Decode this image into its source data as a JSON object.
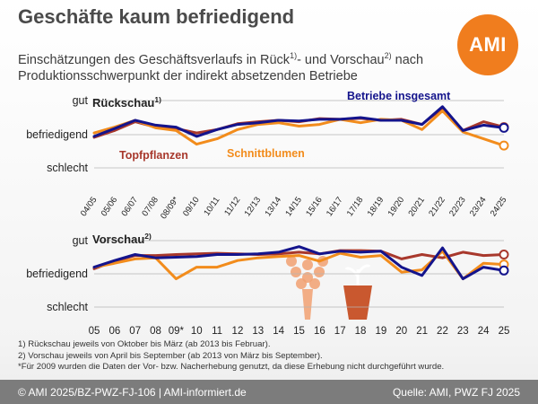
{
  "header": {
    "title": "Geschäfte kaum befriedigend",
    "subtitle_part1": "Einschätzungen des Geschäftsverlaufs in Rück",
    "subtitle_sup1": "1)",
    "subtitle_part2": "- und Vorschau",
    "subtitle_sup2": "2)",
    "subtitle_part3": " nach Produktionsschwerpunkt der indirekt absetzenden Betriebe",
    "logo_text": "AMI"
  },
  "colors": {
    "topfpflanzen": "#a8382c",
    "schnittblumen": "#f28c1c",
    "insgesamt": "#14148c",
    "grid": "#b4b4b4",
    "icons": "#f1a071"
  },
  "icons": [
    "bouquet-icon",
    "potted-plant-icon"
  ],
  "chart_data": [
    {
      "type": "line",
      "panel_title": "Rückschau",
      "panel_title_sup": "1)",
      "y_levels": [
        "gut",
        "befriedigend",
        "schlecht"
      ],
      "categories": [
        "04/05",
        "05/06",
        "06/07",
        "07/08",
        "08/09*",
        "09/10",
        "10/11",
        "11/12",
        "12/13",
        "13/14",
        "14/15",
        "15/16",
        "16/17",
        "17/18",
        "18/19",
        "19/20",
        "20/21",
        "21/22",
        "22/23",
        "23/24",
        "24/25"
      ],
      "ylim": [
        -1,
        1
      ],
      "series": [
        {
          "name": "Topfpflanzen",
          "key": "topfpflanzen",
          "values": [
            -0.08,
            0.12,
            0.38,
            0.22,
            0.18,
            0.05,
            0.15,
            0.32,
            0.38,
            0.42,
            0.38,
            0.47,
            0.45,
            0.48,
            0.42,
            0.45,
            0.3,
            0.78,
            0.12,
            0.38,
            0.22
          ]
        },
        {
          "name": "Schnittblumen",
          "key": "schnittblumen",
          "values": [
            0.05,
            0.22,
            0.42,
            0.2,
            0.12,
            -0.28,
            -0.12,
            0.15,
            0.3,
            0.35,
            0.25,
            0.3,
            0.45,
            0.35,
            0.45,
            0.42,
            0.15,
            0.7,
            0.08,
            -0.12,
            -0.32
          ]
        },
        {
          "name": "Betriebe insgesamt",
          "key": "insgesamt",
          "values": [
            -0.05,
            0.18,
            0.42,
            0.28,
            0.22,
            -0.05,
            0.15,
            0.3,
            0.35,
            0.42,
            0.4,
            0.45,
            0.45,
            0.5,
            0.42,
            0.42,
            0.3,
            0.82,
            0.12,
            0.28,
            0.2
          ]
        }
      ]
    },
    {
      "type": "line",
      "panel_title": "Vorschau",
      "panel_title_sup": "2)",
      "y_levels": [
        "gut",
        "befriedigend",
        "schlecht"
      ],
      "categories": [
        "05",
        "06",
        "07",
        "08",
        "09*",
        "10",
        "11",
        "12",
        "13",
        "14",
        "15",
        "16",
        "17",
        "18",
        "19",
        "20",
        "21",
        "22",
        "23",
        "24",
        "25"
      ],
      "ylim": [
        -1,
        1
      ],
      "series": [
        {
          "name": "Topfpflanzen",
          "key": "topfpflanzen",
          "values": [
            0.15,
            0.38,
            0.55,
            0.55,
            0.58,
            0.6,
            0.62,
            0.6,
            0.58,
            0.6,
            0.65,
            0.6,
            0.7,
            0.7,
            0.68,
            0.45,
            0.58,
            0.48,
            0.65,
            0.55,
            0.58
          ]
        },
        {
          "name": "Schnittblumen",
          "key": "schnittblumen",
          "values": [
            0.2,
            0.32,
            0.45,
            0.48,
            -0.15,
            0.2,
            0.2,
            0.4,
            0.48,
            0.52,
            0.55,
            0.38,
            0.62,
            0.5,
            0.55,
            0.05,
            0.12,
            0.68,
            -0.15,
            0.32,
            0.28
          ]
        },
        {
          "name": "Betriebe insgesamt",
          "key": "insgesamt",
          "values": [
            0.2,
            0.4,
            0.58,
            0.48,
            0.5,
            0.52,
            0.58,
            0.58,
            0.6,
            0.65,
            0.82,
            0.6,
            0.68,
            0.65,
            0.68,
            0.2,
            -0.05,
            0.78,
            -0.15,
            0.2,
            0.1
          ]
        }
      ]
    }
  ],
  "legend_labels": {
    "insgesamt": "Betriebe insgesamt",
    "topfpflanzen": "Topfpflanzen",
    "schnittblumen": "Schnittblumen"
  },
  "notes": [
    "1) Rückschau jeweils von Oktober bis März (ab 2013 bis Februar).",
    "2) Vorschau jeweils von April bis September (ab 2013 von März bis September).",
    "*Für 2009 wurden die Daten der Vor- bzw. Nacherhebung genutzt, da diese Erhebung nicht durchgeführt wurde."
  ],
  "footer": {
    "left": "© AMI 2025/BZ-PWZ-FJ-106 | AMI-informiert.de",
    "right": "Quelle: AMI, PWZ FJ 2025"
  }
}
